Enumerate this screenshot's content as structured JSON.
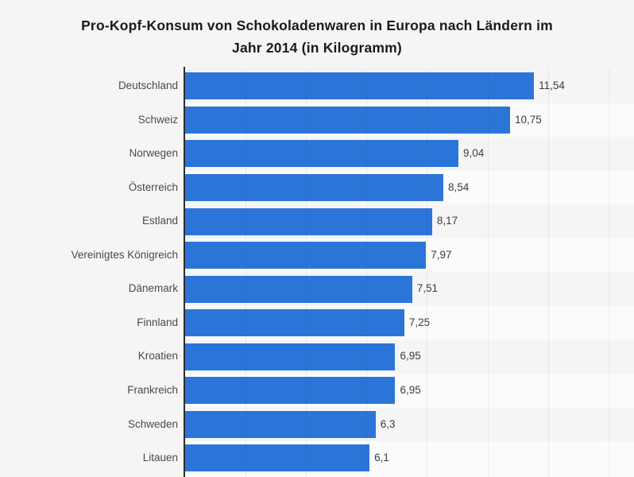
{
  "page": {
    "background": "#f5f5f5"
  },
  "title_lines": [
    "Pro-Kopf-Konsum von Schokoladenwaren in Europa nach Ländern im",
    "Jahr 2014 (in Kilogramm)"
  ],
  "chart_data": {
    "type": "bar",
    "orientation": "horizontal",
    "title": "Pro-Kopf-Konsum von Schokoladenwaren in Europa nach Ländern im Jahr 2014 (in Kilogramm)",
    "unit": "Kilogramm",
    "categories": [
      "Deutschland",
      "Schweiz",
      "Norwegen",
      "Österreich",
      "Estland",
      "Vereinigtes Königreich",
      "Dänemark",
      "Finnland",
      "Kroatien",
      "Frankreich",
      "Schweden",
      "Litauen"
    ],
    "values": [
      11.54,
      10.75,
      9.04,
      8.54,
      8.17,
      7.97,
      7.51,
      7.25,
      6.95,
      6.95,
      6.3,
      6.1
    ],
    "value_labels": [
      "11,54",
      "10,75",
      "9,04",
      "8,54",
      "8,17",
      "7,97",
      "7,51",
      "7,25",
      "6,95",
      "6,95",
      "6,3",
      "6,1"
    ],
    "xlim": [
      0,
      14.85
    ],
    "grid": true,
    "grid_interval": 2,
    "gridline_values": [
      2,
      4,
      6,
      8,
      10,
      12,
      14
    ],
    "legend": false
  },
  "colors": {
    "bar": "#2c75d8",
    "page_bg": "#f5f5f5",
    "row_band_odd": "#f5f5f5",
    "row_band_even": "#fbfbfb",
    "axis": "#2e2e2e",
    "gridline": "#e3e3e3",
    "title": "#1a1a1a",
    "category_label": "#4a4a4a",
    "value_label": "#3c3c3c"
  }
}
